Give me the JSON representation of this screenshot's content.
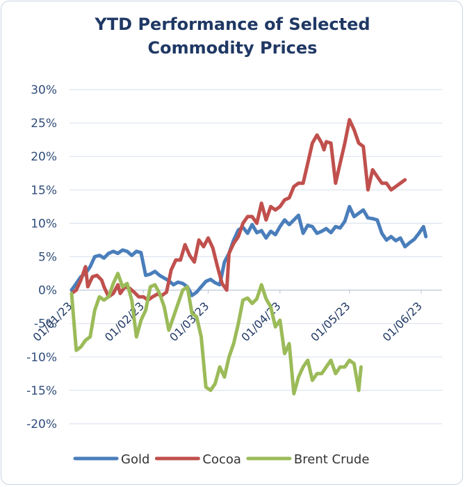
{
  "chart_data": {
    "type": "line",
    "title": [
      "YTD Performance of Selected",
      "Commodity Prices"
    ],
    "y_ticks": [
      "30%",
      "25%",
      "20%",
      "15%",
      "10%",
      "5%",
      "0%",
      "-5%",
      "-10%",
      "-15%",
      "-20%"
    ],
    "ylim": [
      -20,
      30
    ],
    "x_ticks": [
      "01/01/23",
      "01/02/23",
      "01/03/23",
      "01/04/23",
      "01/05/23",
      "01/06/23"
    ],
    "x_tick_days": [
      0,
      31,
      59,
      90,
      120,
      151
    ],
    "xlim": [
      0,
      160
    ],
    "grid": true,
    "legend_position": "bottom",
    "series": [
      {
        "name": "Gold",
        "color": "#4a7ebb",
        "points": [
          [
            0,
            0
          ],
          [
            2,
            1
          ],
          [
            4,
            2
          ],
          [
            6,
            2.5
          ],
          [
            8,
            3.5
          ],
          [
            10,
            5
          ],
          [
            12,
            5.2
          ],
          [
            14,
            4.8
          ],
          [
            16,
            5.5
          ],
          [
            18,
            5.8
          ],
          [
            20,
            5.5
          ],
          [
            22,
            6
          ],
          [
            24,
            5.8
          ],
          [
            26,
            5.2
          ],
          [
            28,
            5.8
          ],
          [
            30,
            5.6
          ],
          [
            32,
            2.2
          ],
          [
            34,
            2.4
          ],
          [
            36,
            2.8
          ],
          [
            38,
            2.2
          ],
          [
            40,
            1.8
          ],
          [
            42,
            1.4
          ],
          [
            44,
            0.8
          ],
          [
            46,
            1.2
          ],
          [
            48,
            1
          ],
          [
            50,
            0.5
          ],
          [
            52,
            -0.8
          ],
          [
            54,
            -0.3
          ],
          [
            56,
            0.5
          ],
          [
            58,
            1.3
          ],
          [
            60,
            1.6
          ],
          [
            62,
            1.1
          ],
          [
            64,
            0.8
          ],
          [
            66,
            4.2
          ],
          [
            68,
            5.5
          ],
          [
            70,
            7.5
          ],
          [
            72,
            9
          ],
          [
            74,
            9.4
          ],
          [
            76,
            8.5
          ],
          [
            78,
            9.8
          ],
          [
            80,
            8.6
          ],
          [
            82,
            8.9
          ],
          [
            84,
            7.8
          ],
          [
            86,
            8.8
          ],
          [
            88,
            8.3
          ],
          [
            90,
            9.5
          ],
          [
            92,
            10.5
          ],
          [
            94,
            9.8
          ],
          [
            96,
            10.5
          ],
          [
            98,
            11.2
          ],
          [
            100,
            8.5
          ],
          [
            102,
            9.7
          ],
          [
            104,
            9.5
          ],
          [
            106,
            8.5
          ],
          [
            108,
            8.8
          ],
          [
            110,
            9.2
          ],
          [
            112,
            8.6
          ],
          [
            114,
            9.5
          ],
          [
            116,
            9.3
          ],
          [
            118,
            10.3
          ],
          [
            120,
            12.5
          ],
          [
            122,
            11
          ],
          [
            124,
            11.5
          ],
          [
            126,
            12
          ],
          [
            128,
            10.8
          ],
          [
            130,
            10.7
          ],
          [
            132,
            10.5
          ],
          [
            134,
            8.5
          ],
          [
            136,
            7.5
          ],
          [
            138,
            8
          ],
          [
            140,
            7.4
          ],
          [
            142,
            7.8
          ],
          [
            144,
            6.5
          ],
          [
            146,
            7.1
          ],
          [
            148,
            7.6
          ],
          [
            150,
            8.5
          ],
          [
            152,
            9.5
          ],
          [
            153,
            8
          ]
        ]
      },
      {
        "name": "Cocoa",
        "color": "#c0504d",
        "points": [
          [
            0,
            -0.5
          ],
          [
            2,
            0
          ],
          [
            4,
            1.5
          ],
          [
            6,
            3.5
          ],
          [
            7,
            0.5
          ],
          [
            9,
            2
          ],
          [
            11,
            2.2
          ],
          [
            13,
            1.5
          ],
          [
            14,
            0.5
          ],
          [
            16,
            -1
          ],
          [
            18,
            -0.5
          ],
          [
            20,
            0.8
          ],
          [
            21,
            -0.5
          ],
          [
            23,
            0.5
          ],
          [
            25,
            0.3
          ],
          [
            27,
            -0.3
          ],
          [
            29,
            -1
          ],
          [
            31,
            -1
          ],
          [
            33,
            -1.5
          ],
          [
            35,
            -1
          ],
          [
            37,
            -0.6
          ],
          [
            39,
            -0.8
          ],
          [
            41,
            -0.3
          ],
          [
            43,
            3
          ],
          [
            45,
            4.5
          ],
          [
            47,
            4.5
          ],
          [
            49,
            6.8
          ],
          [
            51,
            5.2
          ],
          [
            53,
            4.2
          ],
          [
            55,
            7.5
          ],
          [
            57,
            6.5
          ],
          [
            59,
            7.8
          ],
          [
            61,
            6.3
          ],
          [
            63,
            3.5
          ],
          [
            65,
            1
          ],
          [
            67,
            0
          ],
          [
            68,
            5.5
          ],
          [
            70,
            7
          ],
          [
            72,
            8
          ],
          [
            74,
            10
          ],
          [
            76,
            11
          ],
          [
            78,
            11
          ],
          [
            80,
            10
          ],
          [
            82,
            13
          ],
          [
            84,
            10.5
          ],
          [
            86,
            12.5
          ],
          [
            88,
            12
          ],
          [
            90,
            12.5
          ],
          [
            92,
            13.5
          ],
          [
            94,
            13.8
          ],
          [
            96,
            15.5
          ],
          [
            98,
            16
          ],
          [
            100,
            16
          ],
          [
            102,
            19
          ],
          [
            104,
            22
          ],
          [
            106,
            23.2
          ],
          [
            108,
            22
          ],
          [
            109,
            21
          ],
          [
            110,
            22.2
          ],
          [
            112,
            22
          ],
          [
            114,
            16
          ],
          [
            116,
            19
          ],
          [
            118,
            22
          ],
          [
            120,
            25.5
          ],
          [
            122,
            24
          ],
          [
            124,
            22
          ],
          [
            126,
            21.5
          ],
          [
            128,
            15
          ],
          [
            130,
            18
          ],
          [
            132,
            17
          ],
          [
            134,
            16
          ],
          [
            136,
            16
          ],
          [
            138,
            15
          ],
          [
            140,
            15.5
          ],
          [
            142,
            16
          ],
          [
            144,
            16.5
          ]
        ]
      },
      {
        "name": "Brent Crude",
        "color": "#9bbb59",
        "points": [
          [
            0,
            -0.5
          ],
          [
            2,
            -9
          ],
          [
            4,
            -8.5
          ],
          [
            6,
            -7.5
          ],
          [
            8,
            -7
          ],
          [
            10,
            -3
          ],
          [
            12,
            -1
          ],
          [
            14,
            -1.5
          ],
          [
            16,
            -1
          ],
          [
            18,
            1
          ],
          [
            20,
            2.5
          ],
          [
            22,
            0.5
          ],
          [
            24,
            1
          ],
          [
            26,
            -1.5
          ],
          [
            28,
            -7
          ],
          [
            30,
            -4.5
          ],
          [
            32,
            -3
          ],
          [
            34,
            0.5
          ],
          [
            36,
            0.8
          ],
          [
            38,
            -0.5
          ],
          [
            40,
            -2.5
          ],
          [
            42,
            -6
          ],
          [
            44,
            -4
          ],
          [
            46,
            -2
          ],
          [
            48,
            0
          ],
          [
            50,
            0.5
          ],
          [
            52,
            -3.5
          ],
          [
            54,
            -4
          ],
          [
            56,
            -7
          ],
          [
            58,
            -14.5
          ],
          [
            60,
            -15
          ],
          [
            62,
            -14
          ],
          [
            64,
            -11.5
          ],
          [
            66,
            -13
          ],
          [
            68,
            -10
          ],
          [
            70,
            -8
          ],
          [
            72,
            -5
          ],
          [
            74,
            -1.5
          ],
          [
            76,
            -1.2
          ],
          [
            78,
            -2
          ],
          [
            80,
            -1.3
          ],
          [
            82,
            0.8
          ],
          [
            84,
            -1.3
          ],
          [
            86,
            -2.5
          ],
          [
            88,
            -5.5
          ],
          [
            90,
            -4.5
          ],
          [
            92,
            -9.5
          ],
          [
            94,
            -8
          ],
          [
            96,
            -15.5
          ],
          [
            98,
            -13
          ],
          [
            100,
            -11.5
          ],
          [
            102,
            -10.5
          ],
          [
            104,
            -13.5
          ],
          [
            106,
            -12.5
          ],
          [
            108,
            -12.5
          ],
          [
            110,
            -11.5
          ],
          [
            112,
            -10.5
          ],
          [
            114,
            -12.5
          ],
          [
            116,
            -11.5
          ],
          [
            118,
            -11.5
          ],
          [
            120,
            -10.5
          ],
          [
            122,
            -11
          ],
          [
            124,
            -15
          ],
          [
            125,
            -11.5
          ]
        ]
      }
    ]
  }
}
